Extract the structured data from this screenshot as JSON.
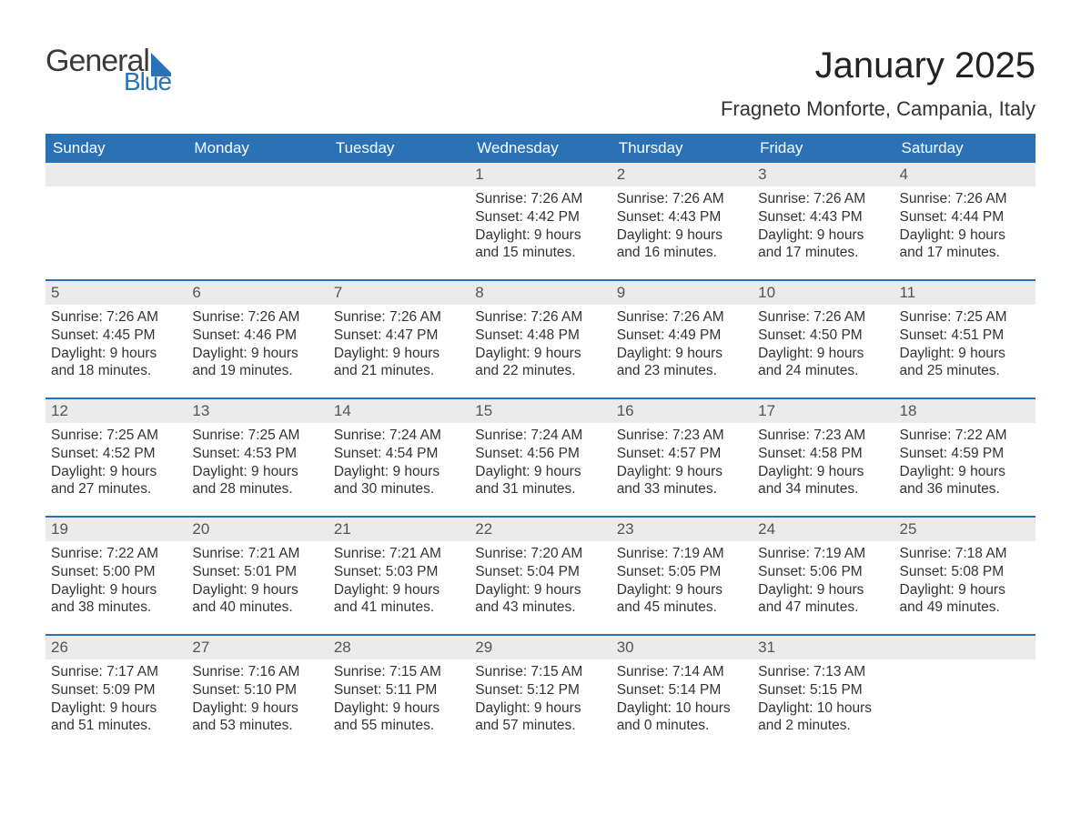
{
  "logo": {
    "word1": "General",
    "word2": "Blue"
  },
  "title": "January 2025",
  "location": "Fragneto Monforte, Campania, Italy",
  "colors": {
    "header_bg": "#2a72b5",
    "header_text": "#ffffff",
    "daynum_bg": "#ebebeb",
    "text": "#333333",
    "rule": "#2a72b5",
    "page_bg": "#ffffff"
  },
  "typography": {
    "title_fontsize": 40,
    "location_fontsize": 22,
    "weekday_fontsize": 17,
    "daynum_fontsize": 17,
    "body_fontsize": 15.5,
    "font_family": "Arial"
  },
  "weekdays": [
    "Sunday",
    "Monday",
    "Tuesday",
    "Wednesday",
    "Thursday",
    "Friday",
    "Saturday"
  ],
  "labels": {
    "sunrise": "Sunrise:",
    "sunset": "Sunset:",
    "daylight": "Daylight:"
  },
  "weeks": [
    [
      {
        "blank": true
      },
      {
        "blank": true
      },
      {
        "blank": true
      },
      {
        "day": "1",
        "sunrise": "7:26 AM",
        "sunset": "4:42 PM",
        "daylight": "9 hours and 15 minutes."
      },
      {
        "day": "2",
        "sunrise": "7:26 AM",
        "sunset": "4:43 PM",
        "daylight": "9 hours and 16 minutes."
      },
      {
        "day": "3",
        "sunrise": "7:26 AM",
        "sunset": "4:43 PM",
        "daylight": "9 hours and 17 minutes."
      },
      {
        "day": "4",
        "sunrise": "7:26 AM",
        "sunset": "4:44 PM",
        "daylight": "9 hours and 17 minutes."
      }
    ],
    [
      {
        "day": "5",
        "sunrise": "7:26 AM",
        "sunset": "4:45 PM",
        "daylight": "9 hours and 18 minutes."
      },
      {
        "day": "6",
        "sunrise": "7:26 AM",
        "sunset": "4:46 PM",
        "daylight": "9 hours and 19 minutes."
      },
      {
        "day": "7",
        "sunrise": "7:26 AM",
        "sunset": "4:47 PM",
        "daylight": "9 hours and 21 minutes."
      },
      {
        "day": "8",
        "sunrise": "7:26 AM",
        "sunset": "4:48 PM",
        "daylight": "9 hours and 22 minutes."
      },
      {
        "day": "9",
        "sunrise": "7:26 AM",
        "sunset": "4:49 PM",
        "daylight": "9 hours and 23 minutes."
      },
      {
        "day": "10",
        "sunrise": "7:26 AM",
        "sunset": "4:50 PM",
        "daylight": "9 hours and 24 minutes."
      },
      {
        "day": "11",
        "sunrise": "7:25 AM",
        "sunset": "4:51 PM",
        "daylight": "9 hours and 25 minutes."
      }
    ],
    [
      {
        "day": "12",
        "sunrise": "7:25 AM",
        "sunset": "4:52 PM",
        "daylight": "9 hours and 27 minutes."
      },
      {
        "day": "13",
        "sunrise": "7:25 AM",
        "sunset": "4:53 PM",
        "daylight": "9 hours and 28 minutes."
      },
      {
        "day": "14",
        "sunrise": "7:24 AM",
        "sunset": "4:54 PM",
        "daylight": "9 hours and 30 minutes."
      },
      {
        "day": "15",
        "sunrise": "7:24 AM",
        "sunset": "4:56 PM",
        "daylight": "9 hours and 31 minutes."
      },
      {
        "day": "16",
        "sunrise": "7:23 AM",
        "sunset": "4:57 PM",
        "daylight": "9 hours and 33 minutes."
      },
      {
        "day": "17",
        "sunrise": "7:23 AM",
        "sunset": "4:58 PM",
        "daylight": "9 hours and 34 minutes."
      },
      {
        "day": "18",
        "sunrise": "7:22 AM",
        "sunset": "4:59 PM",
        "daylight": "9 hours and 36 minutes."
      }
    ],
    [
      {
        "day": "19",
        "sunrise": "7:22 AM",
        "sunset": "5:00 PM",
        "daylight": "9 hours and 38 minutes."
      },
      {
        "day": "20",
        "sunrise": "7:21 AM",
        "sunset": "5:01 PM",
        "daylight": "9 hours and 40 minutes."
      },
      {
        "day": "21",
        "sunrise": "7:21 AM",
        "sunset": "5:03 PM",
        "daylight": "9 hours and 41 minutes."
      },
      {
        "day": "22",
        "sunrise": "7:20 AM",
        "sunset": "5:04 PM",
        "daylight": "9 hours and 43 minutes."
      },
      {
        "day": "23",
        "sunrise": "7:19 AM",
        "sunset": "5:05 PM",
        "daylight": "9 hours and 45 minutes."
      },
      {
        "day": "24",
        "sunrise": "7:19 AM",
        "sunset": "5:06 PM",
        "daylight": "9 hours and 47 minutes."
      },
      {
        "day": "25",
        "sunrise": "7:18 AM",
        "sunset": "5:08 PM",
        "daylight": "9 hours and 49 minutes."
      }
    ],
    [
      {
        "day": "26",
        "sunrise": "7:17 AM",
        "sunset": "5:09 PM",
        "daylight": "9 hours and 51 minutes."
      },
      {
        "day": "27",
        "sunrise": "7:16 AM",
        "sunset": "5:10 PM",
        "daylight": "9 hours and 53 minutes."
      },
      {
        "day": "28",
        "sunrise": "7:15 AM",
        "sunset": "5:11 PM",
        "daylight": "9 hours and 55 minutes."
      },
      {
        "day": "29",
        "sunrise": "7:15 AM",
        "sunset": "5:12 PM",
        "daylight": "9 hours and 57 minutes."
      },
      {
        "day": "30",
        "sunrise": "7:14 AM",
        "sunset": "5:14 PM",
        "daylight": "10 hours and 0 minutes."
      },
      {
        "day": "31",
        "sunrise": "7:13 AM",
        "sunset": "5:15 PM",
        "daylight": "10 hours and 2 minutes."
      },
      {
        "blank": true
      }
    ]
  ]
}
